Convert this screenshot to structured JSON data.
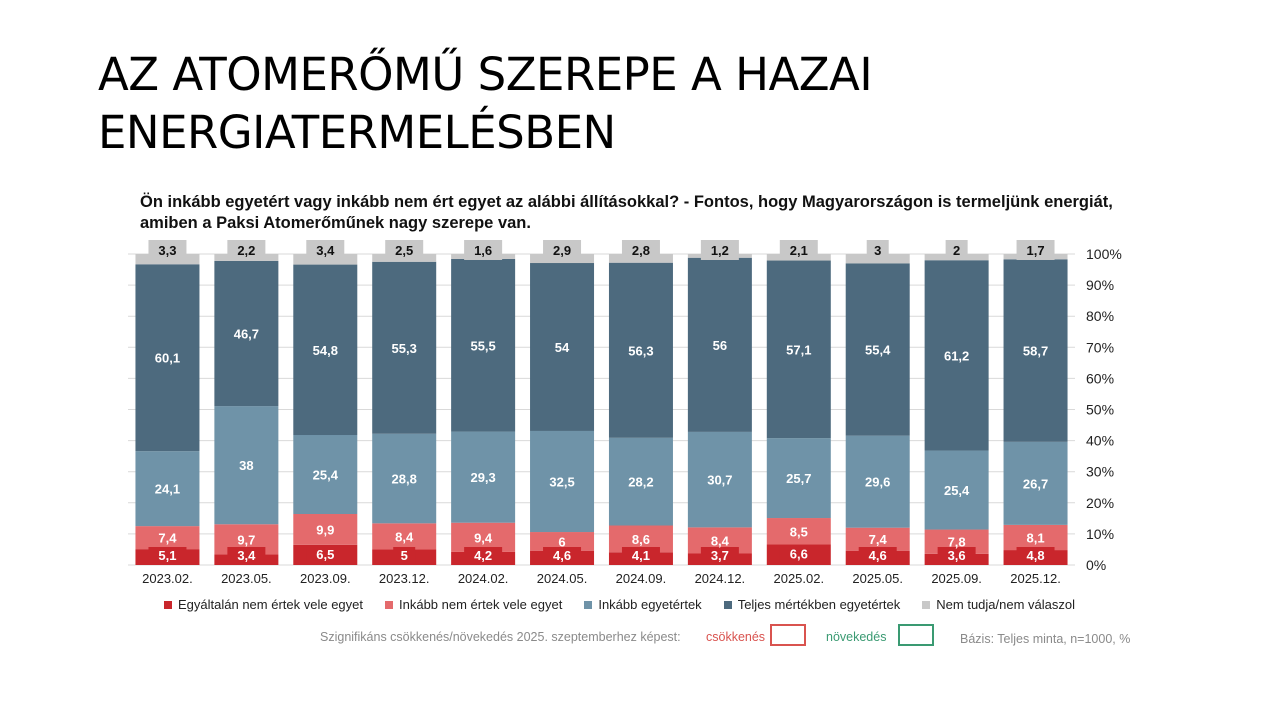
{
  "slide": {
    "title_line1": "AZ ATOMERŐMŰ SZEREPE A HAZAI",
    "title_line2": "ENERGIATERMELÉSBEN"
  },
  "chart_data": {
    "type": "bar",
    "stacked": true,
    "title": "Ön inkább egyetért vagy inkább nem ért egyet az alábbi állításokkal? - Fontos, hogy Magyarországon is termeljünk energiát, amiben a Paksi Atomerőműnek nagy szerepe van.",
    "categories": [
      "2023.02.",
      "2023.05.",
      "2023.09.",
      "2023.12.",
      "2024.02.",
      "2024.05.",
      "2024.09.",
      "2024.12.",
      "2025.02.",
      "2025.05.",
      "2025.09.",
      "2025.12."
    ],
    "ylim": [
      0,
      100
    ],
    "yticks": [
      "0%",
      "10%",
      "20%",
      "30%",
      "40%",
      "50%",
      "60%",
      "70%",
      "80%",
      "90%",
      "100%"
    ],
    "grid": true,
    "legend_position": "bottom",
    "series": [
      {
        "name": "Egyáltalán nem értek vele egyet",
        "color": "#c9262c",
        "label_color": "#ffffff",
        "values": [
          5.1,
          3.4,
          6.5,
          5,
          4.2,
          4.6,
          4.1,
          3.7,
          6.6,
          4.6,
          3.6,
          4.8
        ],
        "labels": [
          "5,1",
          "3,4",
          "6,5",
          "5",
          "4,2",
          "4,6",
          "4,1",
          "3,7",
          "6,6",
          "4,6",
          "3,6",
          "4,8"
        ]
      },
      {
        "name": "Inkább nem értek vele egyet",
        "color": "#e46a6c",
        "label_color": "#ffffff",
        "values": [
          7.4,
          9.7,
          9.9,
          8.4,
          9.4,
          6,
          8.6,
          8.4,
          8.5,
          7.4,
          7.8,
          8.1
        ],
        "labels": [
          "7,4",
          "9,7",
          "9,9",
          "8,4",
          "9,4",
          "6",
          "8,6",
          "8,4",
          "8,5",
          "7,4",
          "7,8",
          "8,1"
        ]
      },
      {
        "name": "Inkább egyetértek",
        "color": "#6f93a8",
        "label_color": "#ffffff",
        "values": [
          24.1,
          38,
          25.4,
          28.8,
          29.3,
          32.5,
          28.2,
          30.7,
          25.7,
          29.6,
          25.4,
          26.7
        ],
        "labels": [
          "24,1",
          "38",
          "25,4",
          "28,8",
          "29,3",
          "32,5",
          "28,2",
          "30,7",
          "25,7",
          "29,6",
          "25,4",
          "26,7"
        ]
      },
      {
        "name": "Teljes mértékben egyetértek",
        "color": "#4d6a7e",
        "label_color": "#ffffff",
        "values": [
          60.1,
          46.7,
          54.8,
          55.3,
          55.5,
          54,
          56.3,
          56,
          57.1,
          55.4,
          61.2,
          58.7
        ],
        "labels": [
          "60,1",
          "46,7",
          "54,8",
          "55,3",
          "55,5",
          "54",
          "56,3",
          "56",
          "57,1",
          "55,4",
          "61,2",
          "58,7"
        ]
      },
      {
        "name": "Nem tudja/nem válaszol",
        "color": "#c8c8c8",
        "label_color": "#111111",
        "values": [
          3.3,
          2.2,
          3.4,
          2.5,
          1.6,
          2.9,
          2.8,
          1.2,
          2.1,
          3,
          2,
          1.7
        ],
        "labels": [
          "3,3",
          "2,2",
          "3,4",
          "2,5",
          "1,6",
          "2,9",
          "2,8",
          "1,2",
          "2,1",
          "3",
          "2",
          "1,7"
        ]
      }
    ]
  },
  "notes": {
    "significance": "Szignifikáns csökkenés/növekedés 2025. szeptemberhez képest:",
    "decrease": "csökkenés",
    "decrease_color": "#d9534f",
    "increase": "növekedés",
    "increase_color": "#3a9a72",
    "basis": "Bázis: Teljes minta, n=1000, %"
  }
}
